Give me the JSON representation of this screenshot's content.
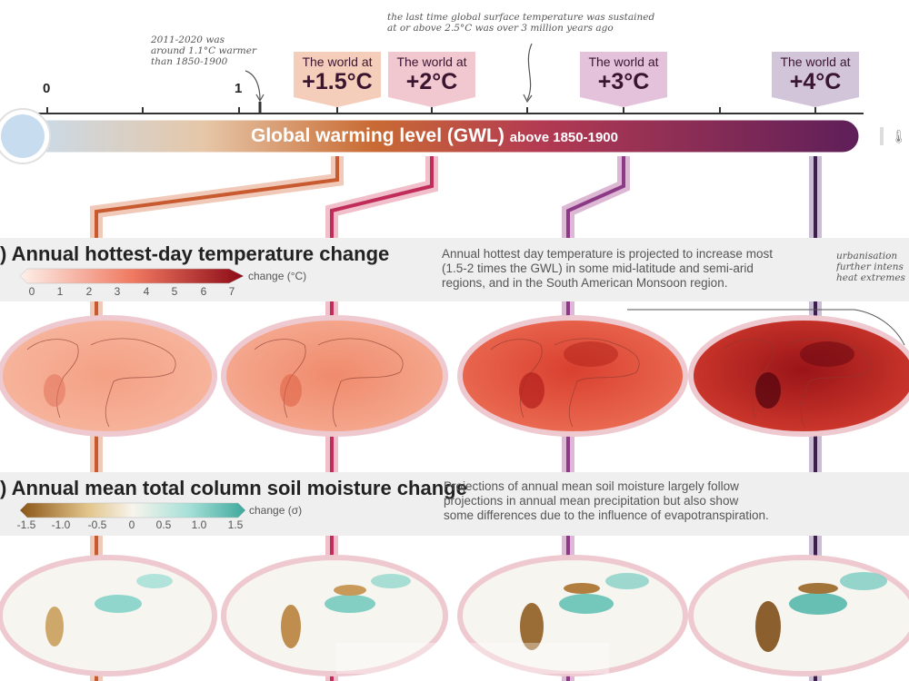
{
  "notes": {
    "left_lines": [
      "2011-2020 was",
      "around 1.1°C warmer",
      "than 1850-1900"
    ],
    "top_lines": [
      "the last time global surface temperature was sustained",
      "at or above 2.5°C was over 3 million years ago"
    ],
    "right_lines": [
      "urbanisation",
      "further intens",
      "heat extremes"
    ]
  },
  "scale": {
    "zero": "0",
    "one": "1"
  },
  "gwl_levels": [
    {
      "pre": "The world at",
      "value": "+1.5°C",
      "fill": "#f4c8b4",
      "stroke": "#c85a30"
    },
    {
      "pre": "The world at",
      "value": "+2°C",
      "fill": "#f1c2cb",
      "stroke": "#c02d5a"
    },
    {
      "pre": "The world at",
      "value": "+3°C",
      "fill": "#e1bbd8",
      "stroke": "#8c3a86"
    },
    {
      "pre": "The world at",
      "value": "+4°C",
      "fill": "#cdbfd6",
      "stroke": "#3e1f4c"
    }
  ],
  "bar": {
    "title": "Global warming level (GWL)",
    "subtitle": "above 1850-1900"
  },
  "colors": {
    "bar_start": "#c7dcee",
    "bar_mid": "#c96b34",
    "bar_end": "#5e1f59",
    "band": "#efefef"
  },
  "sections": {
    "hot": {
      "title": ") Annual hottest-day temperature change",
      "legend_label": "change (°C)",
      "ticks": [
        "0",
        "1",
        "2",
        "3",
        "4",
        "5",
        "6",
        "7"
      ],
      "desc_lines": [
        "Annual hottest day temperature is projected to increase most",
        "(1.5-2 times the GWL) in some mid-latitude and semi-arid",
        "regions, and in the South American Monsoon region."
      ]
    },
    "soil": {
      "title": ") Annual mean total column soil moisture change",
      "legend_label": "change (σ)",
      "ticks": [
        "-1.5",
        "-1.0",
        "-0.5",
        "0",
        "0.5",
        "1.0",
        "1.5"
      ],
      "desc_lines": [
        "Projections of annual mean soil moisture largely follow",
        "projections in annual mean precipitation but also show",
        "some differences due to the influence of evapotranspiration."
      ]
    }
  }
}
